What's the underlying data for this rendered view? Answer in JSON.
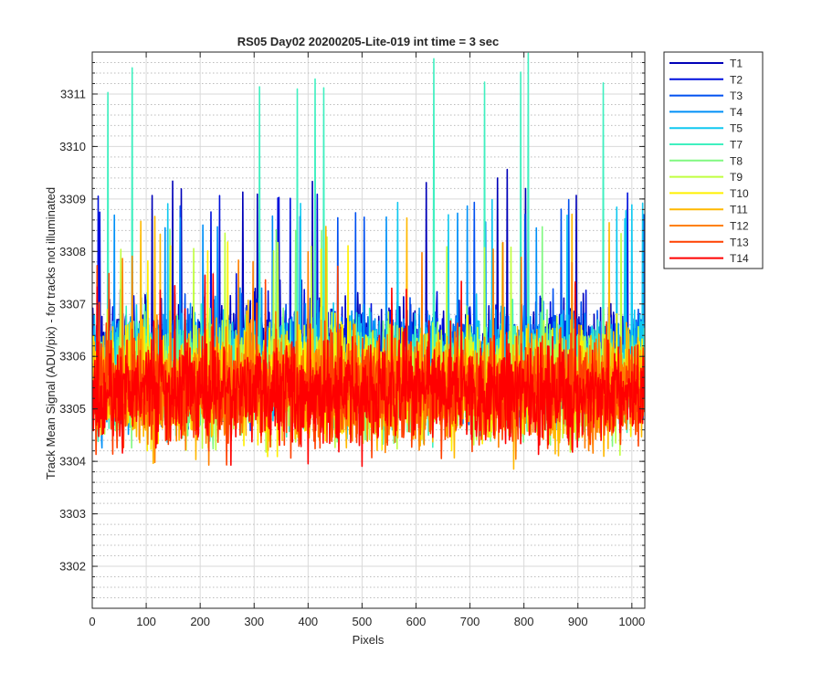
{
  "chart_data": {
    "type": "line",
    "title": "RS05 Day02 20200205-Lite-019 int time = 3 sec",
    "xlabel": "Pixels",
    "ylabel": "Track Mean Signal (ADU/pix) - for tracks not illuminated",
    "xlim": [
      0,
      1024
    ],
    "ylim": [
      3301.2,
      3311.8
    ],
    "xticks": [
      0,
      100,
      200,
      300,
      400,
      500,
      600,
      700,
      800,
      900,
      1000
    ],
    "yticks": [
      3302,
      3303,
      3304,
      3305,
      3306,
      3307,
      3308,
      3309,
      3310,
      3311
    ],
    "grid": true,
    "minor_grid": true,
    "legend_position": "outside-top-right",
    "n_points_per_series": 1024,
    "series": [
      {
        "name": "T1",
        "color": "#0000B8",
        "center": 3306.0,
        "spread": 0.95,
        "spike_max": 3309.6
      },
      {
        "name": "T2",
        "color": "#0010DD",
        "center": 3305.95,
        "spread": 0.95,
        "spike_max": 3309.2
      },
      {
        "name": "T3",
        "color": "#0050F0",
        "center": 3305.9,
        "spread": 0.95,
        "spike_max": 3309.0
      },
      {
        "name": "T4",
        "color": "#0090F8",
        "center": 3305.85,
        "spread": 0.95,
        "spike_max": 3308.9
      },
      {
        "name": "T5",
        "color": "#10C8F0",
        "center": 3305.8,
        "spread": 0.95,
        "spike_max": 3309.0
      },
      {
        "name": "T7",
        "color": "#40F0C0",
        "center": 3305.7,
        "spread": 0.95,
        "spike_max": 3311.8
      },
      {
        "name": "T8",
        "color": "#80F880",
        "center": 3305.6,
        "spread": 0.95,
        "spike_max": 3308.6
      },
      {
        "name": "T9",
        "color": "#C0FF40",
        "center": 3305.55,
        "spread": 0.95,
        "spike_max": 3308.4
      },
      {
        "name": "T10",
        "color": "#FFF000",
        "center": 3305.5,
        "spread": 0.95,
        "spike_max": 3308.2
      },
      {
        "name": "T11",
        "color": "#FFB800",
        "center": 3305.45,
        "spread": 0.95,
        "spike_max": 3308.8
      },
      {
        "name": "T12",
        "color": "#FF8000",
        "center": 3305.4,
        "spread": 0.95,
        "spike_max": 3308.2
      },
      {
        "name": "T13",
        "color": "#FF4000",
        "center": 3305.35,
        "spread": 0.95,
        "spike_max": 3307.8
      },
      {
        "name": "T14",
        "color": "#FF0000",
        "center": 3305.3,
        "spread": 0.9,
        "spike_max": 3307.6
      }
    ]
  }
}
